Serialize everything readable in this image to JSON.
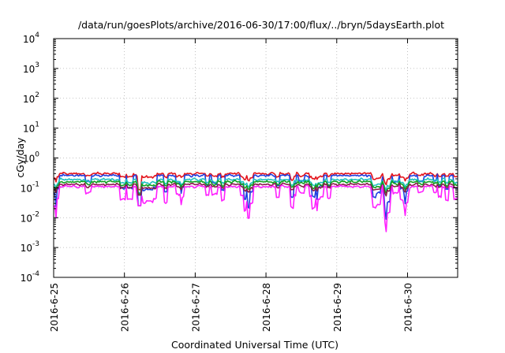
{
  "chart_data": {
    "type": "line",
    "title": "/data/run/goesPlots/archive/2016-06-30/17:00/flux/../bryn/5daysEarth.plot",
    "xlabel": "Coordinated Universal Time (UTC)",
    "ylabel": "cGy/day",
    "y_scale": "log",
    "ylim": [
      0.0001,
      10000
    ],
    "y_ticks": [
      {
        "value": 0.0001,
        "base": "10",
        "exp": "-4"
      },
      {
        "value": 0.001,
        "base": "10",
        "exp": "-3"
      },
      {
        "value": 0.01,
        "base": "10",
        "exp": "-2"
      },
      {
        "value": 0.1,
        "base": "10",
        "exp": "-1"
      },
      {
        "value": 1,
        "base": "10",
        "exp": "0"
      },
      {
        "value": 10,
        "base": "10",
        "exp": "1"
      },
      {
        "value": 100,
        "base": "10",
        "exp": "2"
      },
      {
        "value": 1000,
        "base": "10",
        "exp": "3"
      },
      {
        "value": 10000,
        "base": "10",
        "exp": "4"
      }
    ],
    "xlim": [
      "2016-06-25",
      "2016-06-30 17:00"
    ],
    "x_ticks": [
      "2016-6-25",
      "2016-6-26",
      "2016-6-27",
      "2016-6-28",
      "2016-6-29",
      "2016-6-30"
    ],
    "grid": true,
    "legend": "none",
    "series": [
      {
        "color": "#e4141c",
        "level": 0.3,
        "dips": "small"
      },
      {
        "color": "#2040e0",
        "level": 0.26,
        "dips": "deep"
      },
      {
        "color": "#20c0c0",
        "level": 0.19,
        "dips": "small"
      },
      {
        "color": "#10a020",
        "level": 0.16,
        "dips": "small"
      },
      {
        "color": "#8a1c4a",
        "level": 0.13,
        "dips": "small"
      },
      {
        "color": "#ff20ff",
        "level": 0.11,
        "dips": "deep"
      }
    ],
    "events": [
      {
        "x": "2016-06-26 05:00",
        "min": 0.025,
        "note": "sharp dip"
      }
    ]
  }
}
